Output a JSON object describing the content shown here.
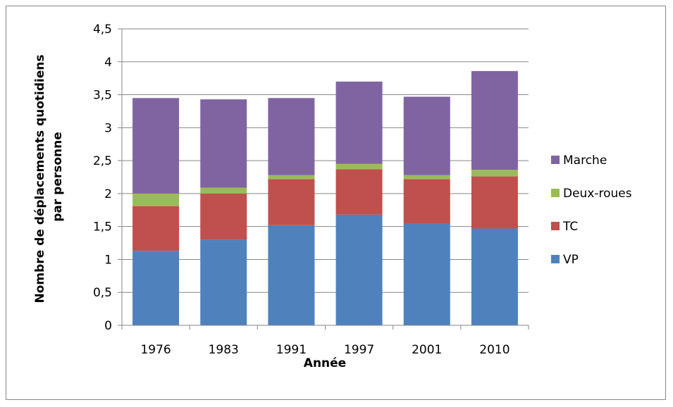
{
  "chart_data": {
    "type": "bar",
    "stacked": true,
    "xlabel": "Année",
    "ylabel_lines": [
      "Nombre de déplacements quotidiens",
      "par personne"
    ],
    "categories": [
      "1976",
      "1983",
      "1991",
      "1997",
      "2001",
      "2010"
    ],
    "ylim": [
      0,
      4.5
    ],
    "yticks": [
      0,
      0.5,
      1,
      1.5,
      2,
      2.5,
      3,
      3.5,
      4,
      4.5
    ],
    "ytick_labels": [
      "0",
      "0,5",
      "1",
      "1,5",
      "2",
      "2,5",
      "3",
      "3,5",
      "4",
      "4,5"
    ],
    "grid": true,
    "legend_position": "right",
    "series": [
      {
        "name": "VP",
        "color": "#4F81BD",
        "values": [
          1.13,
          1.3,
          1.52,
          1.68,
          1.54,
          1.47
        ]
      },
      {
        "name": "TC",
        "color": "#C0504D",
        "values": [
          0.68,
          0.7,
          0.7,
          0.69,
          0.68,
          0.79
        ]
      },
      {
        "name": "Deux-roues",
        "color": "#9BBB59",
        "values": [
          0.19,
          0.09,
          0.06,
          0.08,
          0.06,
          0.1
        ]
      },
      {
        "name": "Marche",
        "color": "#8064A2",
        "values": [
          1.45,
          1.34,
          1.17,
          1.25,
          1.19,
          1.5
        ]
      }
    ],
    "legend_order": [
      "Marche",
      "Deux-roues",
      "TC",
      "VP"
    ]
  }
}
